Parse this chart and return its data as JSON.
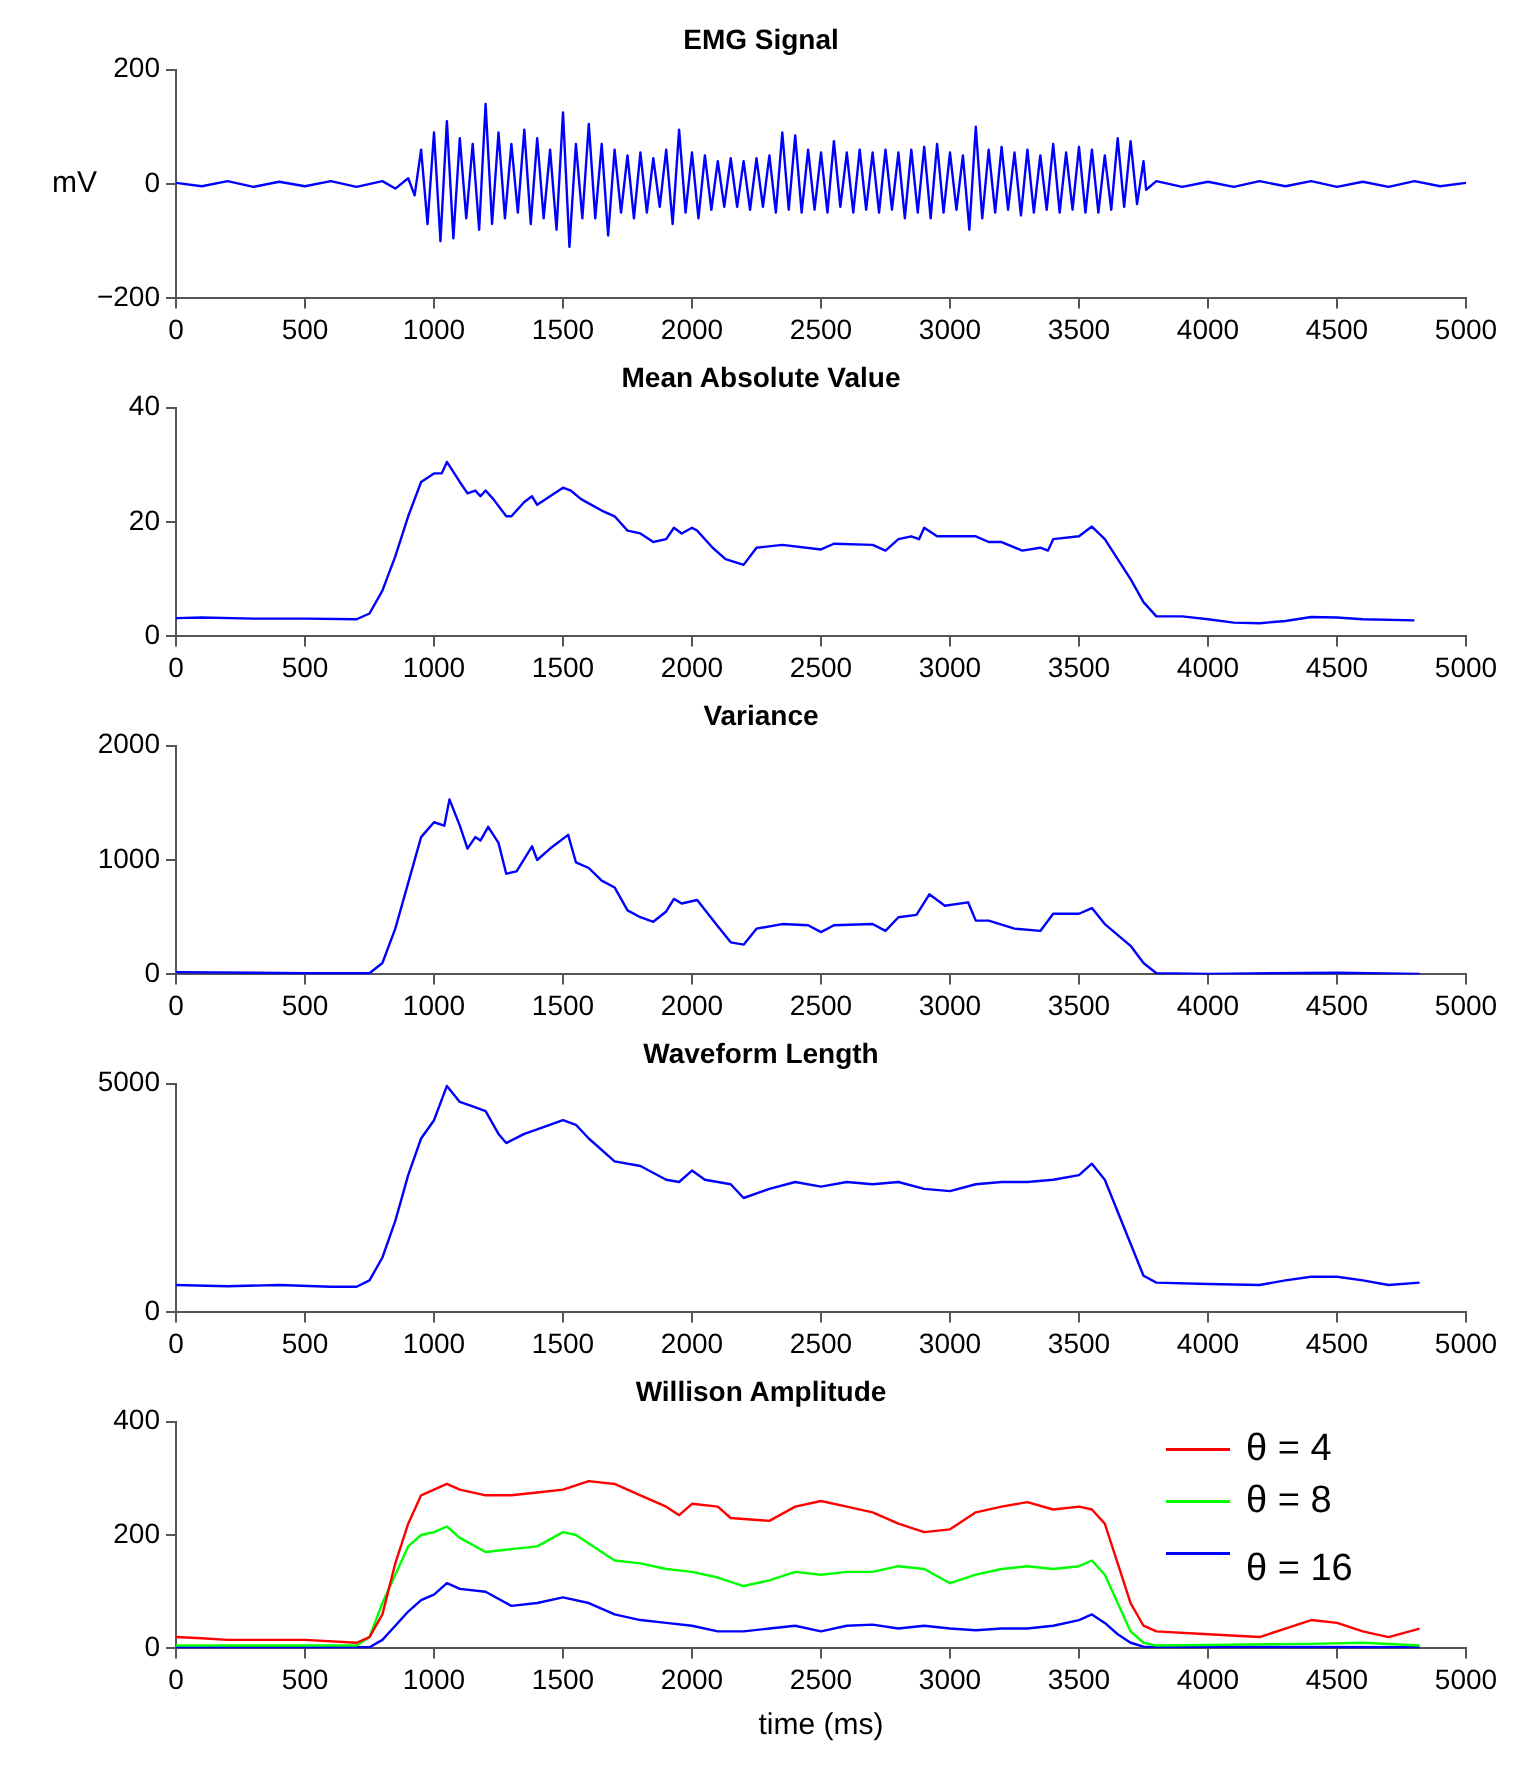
{
  "chart_data": [
    {
      "type": "line",
      "title": "EMG Signal",
      "ylabel": "mV",
      "x": [
        0,
        100,
        200,
        300,
        400,
        500,
        600,
        700,
        800,
        850,
        900,
        925,
        950,
        975,
        1000,
        1025,
        1050,
        1075,
        1100,
        1125,
        1150,
        1175,
        1200,
        1225,
        1250,
        1275,
        1300,
        1325,
        1350,
        1375,
        1400,
        1425,
        1450,
        1475,
        1500,
        1525,
        1550,
        1575,
        1600,
        1625,
        1650,
        1675,
        1700,
        1725,
        1750,
        1775,
        1800,
        1825,
        1850,
        1875,
        1900,
        1925,
        1950,
        1975,
        2000,
        2025,
        2050,
        2075,
        2100,
        2125,
        2150,
        2175,
        2200,
        2225,
        2250,
        2275,
        2300,
        2325,
        2350,
        2375,
        2400,
        2425,
        2450,
        2475,
        2500,
        2525,
        2550,
        2575,
        2600,
        2625,
        2650,
        2675,
        2700,
        2725,
        2750,
        2775,
        2800,
        2825,
        2850,
        2875,
        2900,
        2925,
        2950,
        2975,
        3000,
        3025,
        3050,
        3075,
        3100,
        3125,
        3150,
        3175,
        3200,
        3225,
        3250,
        3275,
        3300,
        3325,
        3350,
        3375,
        3400,
        3425,
        3450,
        3475,
        3500,
        3525,
        3550,
        3575,
        3600,
        3625,
        3650,
        3675,
        3700,
        3725,
        3750,
        3760,
        3800,
        3900,
        4000,
        4100,
        4200,
        4300,
        4400,
        4500,
        4600,
        4700,
        4800,
        4900,
        5000
      ],
      "series": [
        {
          "color": "#0000ff",
          "values": [
            2,
            -4,
            5,
            -5,
            4,
            -4,
            5,
            -5,
            5,
            -8,
            10,
            -20,
            60,
            -70,
            90,
            -100,
            110,
            -95,
            80,
            -60,
            70,
            -80,
            140,
            -70,
            90,
            -60,
            70,
            -50,
            95,
            -70,
            80,
            -60,
            60,
            -80,
            125,
            -110,
            70,
            -60,
            105,
            -60,
            70,
            -90,
            60,
            -50,
            50,
            -60,
            55,
            -50,
            45,
            -40,
            60,
            -70,
            95,
            -50,
            55,
            -60,
            50,
            -45,
            40,
            -40,
            45,
            -40,
            40,
            -45,
            45,
            -40,
            50,
            -50,
            90,
            -45,
            85,
            -50,
            60,
            -45,
            55,
            -50,
            75,
            -40,
            55,
            -50,
            60,
            -45,
            55,
            -50,
            60,
            -45,
            55,
            -60,
            60,
            -50,
            65,
            -60,
            70,
            -50,
            55,
            -45,
            50,
            -80,
            100,
            -60,
            60,
            -50,
            65,
            -45,
            55,
            -55,
            60,
            -50,
            50,
            -45,
            70,
            -50,
            55,
            -45,
            65,
            -50,
            60,
            -50,
            50,
            -45,
            80,
            -40,
            75,
            -35,
            40,
            -10,
            5,
            -5,
            4,
            -5,
            5,
            -4,
            5,
            -5,
            4,
            -5,
            5,
            -4,
            2
          ]
        }
      ],
      "xlim": [
        0,
        5000
      ],
      "xticks": [
        0,
        500,
        1000,
        1500,
        2000,
        2500,
        3000,
        3500,
        4000,
        4500,
        5000
      ],
      "ylim": [
        -200,
        200
      ],
      "yticks": [
        {
          "value": -200,
          "label": "−200"
        },
        0,
        200
      ],
      "grid": false
    },
    {
      "type": "line",
      "title": "Mean Absolute Value",
      "x": [
        0,
        100,
        300,
        500,
        700,
        750,
        800,
        850,
        900,
        950,
        1000,
        1030,
        1050,
        1100,
        1130,
        1160,
        1180,
        1200,
        1230,
        1280,
        1300,
        1350,
        1380,
        1400,
        1450,
        1500,
        1530,
        1570,
        1650,
        1700,
        1750,
        1800,
        1850,
        1900,
        1930,
        1960,
        2000,
        2020,
        2080,
        2130,
        2200,
        2250,
        2350,
        2500,
        2550,
        2700,
        2750,
        2800,
        2850,
        2880,
        2900,
        2950,
        3100,
        3150,
        3200,
        3280,
        3350,
        3380,
        3400,
        3500,
        3550,
        3600,
        3650,
        3700,
        3750,
        3800,
        3900,
        4000,
        4100,
        4200,
        4300,
        4400,
        4500,
        4600,
        4800
      ],
      "series": [
        {
          "color": "#0000ff",
          "values": [
            3.2,
            3.3,
            3.1,
            3.1,
            3.0,
            4,
            8,
            14,
            21,
            27,
            28.5,
            28.5,
            30.5,
            27,
            25,
            25.5,
            24.5,
            25.5,
            24,
            21,
            21,
            23.5,
            24.5,
            23,
            24.5,
            26,
            25.5,
            24,
            22,
            21,
            18.5,
            18,
            16.5,
            17,
            19,
            18,
            19,
            18.5,
            15.5,
            13.5,
            12.5,
            15.5,
            16,
            15.2,
            16.2,
            16,
            15,
            17,
            17.5,
            17,
            19,
            17.5,
            17.5,
            16.5,
            16.5,
            15,
            15.5,
            15,
            17,
            17.5,
            19.2,
            17,
            13.5,
            10,
            6,
            3.5,
            3.5,
            3,
            2.4,
            2.3,
            2.7,
            3.4,
            3.3,
            3,
            2.8
          ]
        }
      ],
      "xlim": [
        0,
        5000
      ],
      "xticks": [
        0,
        500,
        1000,
        1500,
        2000,
        2500,
        3000,
        3500,
        4000,
        4500,
        5000
      ],
      "ylim": [
        0,
        40
      ],
      "yticks": [
        0,
        20,
        40
      ],
      "grid": false
    },
    {
      "type": "line",
      "title": "Variance",
      "x": [
        0,
        500,
        750,
        800,
        850,
        900,
        950,
        1000,
        1040,
        1060,
        1100,
        1130,
        1160,
        1180,
        1210,
        1250,
        1280,
        1320,
        1380,
        1400,
        1450,
        1520,
        1550,
        1600,
        1650,
        1700,
        1750,
        1800,
        1850,
        1900,
        1930,
        1960,
        2020,
        2100,
        2150,
        2200,
        2250,
        2350,
        2450,
        2500,
        2550,
        2700,
        2750,
        2800,
        2870,
        2920,
        2980,
        3070,
        3100,
        3150,
        3250,
        3350,
        3400,
        3500,
        3550,
        3600,
        3700,
        3750,
        3800,
        4000,
        4500,
        4820
      ],
      "series": [
        {
          "color": "#0000ff",
          "values": [
            20,
            10,
            10,
            100,
            400,
            800,
            1200,
            1330,
            1300,
            1530,
            1300,
            1100,
            1200,
            1170,
            1290,
            1150,
            880,
            900,
            1120,
            1000,
            1100,
            1220,
            980,
            930,
            820,
            760,
            560,
            500,
            460,
            550,
            660,
            620,
            650,
            420,
            280,
            260,
            400,
            440,
            430,
            370,
            430,
            440,
            380,
            500,
            520,
            700,
            600,
            630,
            470,
            470,
            400,
            380,
            530,
            530,
            580,
            440,
            250,
            100,
            10,
            5,
            15,
            5
          ]
        }
      ],
      "xlim": [
        0,
        5000
      ],
      "xticks": [
        0,
        500,
        1000,
        1500,
        2000,
        2500,
        3000,
        3500,
        4000,
        4500,
        5000
      ],
      "ylim": [
        0,
        2000
      ],
      "yticks": [
        0,
        1000,
        2000
      ],
      "grid": false
    },
    {
      "type": "line",
      "title": "Waveform Length",
      "x": [
        0,
        200,
        400,
        600,
        700,
        750,
        800,
        850,
        900,
        950,
        1000,
        1050,
        1100,
        1150,
        1200,
        1250,
        1280,
        1350,
        1400,
        1500,
        1550,
        1600,
        1700,
        1800,
        1900,
        1950,
        2000,
        2050,
        2150,
        2200,
        2300,
        2400,
        2500,
        2600,
        2700,
        2800,
        2900,
        3000,
        3100,
        3200,
        3300,
        3400,
        3500,
        3550,
        3600,
        3650,
        3700,
        3750,
        3800,
        4000,
        4200,
        4300,
        4400,
        4500,
        4600,
        4700,
        4820
      ],
      "series": [
        {
          "color": "#0000ff",
          "values": [
            600,
            570,
            600,
            560,
            560,
            700,
            1200,
            2000,
            3000,
            3800,
            4200,
            4950,
            4600,
            4500,
            4400,
            3900,
            3700,
            3900,
            4000,
            4200,
            4100,
            3800,
            3300,
            3200,
            2900,
            2850,
            3100,
            2900,
            2800,
            2500,
            2700,
            2850,
            2750,
            2850,
            2800,
            2850,
            2700,
            2650,
            2800,
            2850,
            2850,
            2900,
            3000,
            3250,
            2900,
            2200,
            1500,
            800,
            650,
            620,
            600,
            700,
            780,
            780,
            700,
            600,
            650
          ]
        }
      ],
      "xlim": [
        0,
        5000
      ],
      "xticks": [
        0,
        500,
        1000,
        1500,
        2000,
        2500,
        3000,
        3500,
        4000,
        4500,
        5000
      ],
      "ylim": [
        0,
        5000
      ],
      "yticks": [
        0,
        5000
      ],
      "grid": false
    },
    {
      "type": "line",
      "title": "Willison Amplitude",
      "xlabel": "time (ms)",
      "legend": "top right",
      "series": [
        {
          "name": "θ = 4",
          "color": "#ff0000",
          "x": [
            0,
            100,
            200,
            500,
            700,
            750,
            800,
            850,
            900,
            950,
            1000,
            1050,
            1100,
            1200,
            1300,
            1400,
            1500,
            1600,
            1700,
            1800,
            1900,
            1950,
            2000,
            2100,
            2150,
            2300,
            2400,
            2500,
            2600,
            2700,
            2800,
            2900,
            3000,
            3100,
            3200,
            3300,
            3400,
            3500,
            3550,
            3600,
            3650,
            3700,
            3750,
            3800,
            4000,
            4200,
            4300,
            4400,
            4500,
            4600,
            4700,
            4820
          ],
          "values": [
            20,
            18,
            15,
            15,
            10,
            20,
            60,
            150,
            220,
            270,
            280,
            290,
            280,
            270,
            270,
            275,
            280,
            295,
            290,
            270,
            250,
            235,
            255,
            250,
            230,
            225,
            250,
            260,
            250,
            240,
            220,
            205,
            210,
            240,
            250,
            258,
            245,
            250,
            245,
            220,
            150,
            80,
            40,
            30,
            25,
            20,
            35,
            50,
            45,
            30,
            20,
            35
          ]
        },
        {
          "name": "θ = 8",
          "color": "#00ff00",
          "x": [
            0,
            500,
            700,
            750,
            800,
            850,
            900,
            950,
            1000,
            1050,
            1100,
            1200,
            1300,
            1400,
            1500,
            1550,
            1600,
            1700,
            1800,
            1900,
            2000,
            2100,
            2200,
            2300,
            2400,
            2500,
            2600,
            2700,
            2800,
            2900,
            3000,
            3100,
            3200,
            3300,
            3400,
            3500,
            3550,
            3600,
            3650,
            3700,
            3750,
            3800,
            4400,
            4600,
            4820
          ],
          "values": [
            5,
            5,
            5,
            20,
            80,
            130,
            180,
            200,
            205,
            215,
            195,
            170,
            175,
            180,
            205,
            200,
            185,
            155,
            150,
            140,
            135,
            125,
            110,
            120,
            135,
            130,
            135,
            135,
            145,
            140,
            115,
            130,
            140,
            145,
            140,
            145,
            155,
            130,
            80,
            30,
            10,
            5,
            8,
            10,
            5
          ]
        },
        {
          "name": "θ = 16",
          "color": "#0000ff",
          "x": [
            0,
            700,
            750,
            800,
            850,
            900,
            950,
            1000,
            1050,
            1100,
            1200,
            1300,
            1400,
            1500,
            1600,
            1700,
            1800,
            1900,
            2000,
            2100,
            2200,
            2300,
            2400,
            2500,
            2600,
            2700,
            2800,
            2900,
            3000,
            3100,
            3200,
            3300,
            3400,
            3500,
            3550,
            3600,
            3650,
            3700,
            3750,
            4820
          ],
          "values": [
            2,
            2,
            2,
            15,
            40,
            65,
            85,
            95,
            115,
            105,
            100,
            75,
            80,
            90,
            80,
            60,
            50,
            45,
            40,
            30,
            30,
            35,
            40,
            30,
            40,
            42,
            35,
            40,
            35,
            32,
            35,
            35,
            40,
            50,
            60,
            45,
            25,
            10,
            3,
            2
          ]
        }
      ],
      "xlim": [
        0,
        5000
      ],
      "xticks": [
        0,
        500,
        1000,
        1500,
        2000,
        2500,
        3000,
        3500,
        4000,
        4500,
        5000
      ],
      "ylim": [
        0,
        400
      ],
      "yticks": [
        0,
        200,
        400
      ],
      "grid": false
    }
  ]
}
